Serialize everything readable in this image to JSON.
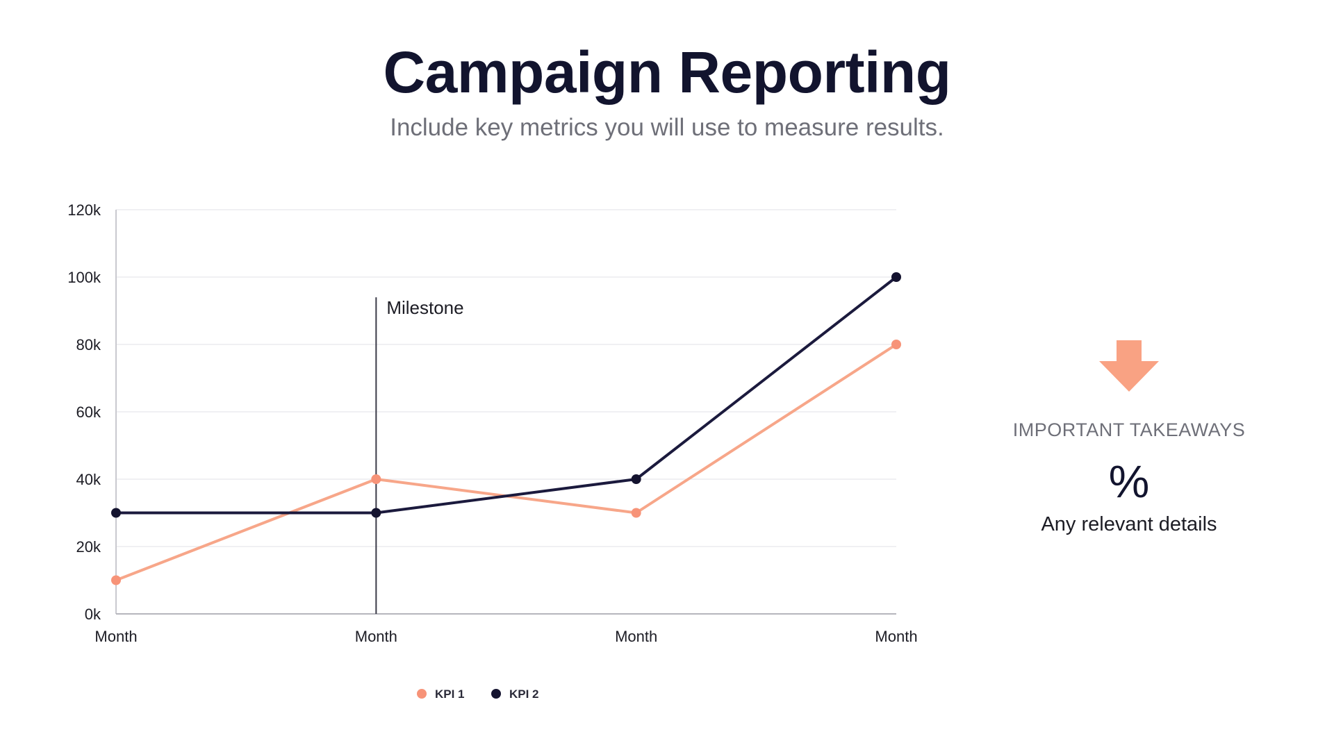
{
  "page": {
    "title": "Campaign Reporting",
    "subtitle": "Include key metrics you will use to measure results."
  },
  "takeaways": {
    "heading": "IMPORTANT TAKEAWAYS",
    "value": "%",
    "details": "Any relevant details",
    "arrow_icon": "arrow-down-icon",
    "arrow_color": "#f9a283"
  },
  "chart_data": {
    "type": "line",
    "categories": [
      "Month",
      "Month",
      "Month",
      "Month"
    ],
    "series": [
      {
        "name": "KPI 1",
        "values": [
          10000,
          40000,
          30000,
          80000
        ],
        "color": "#f7a689",
        "marker_color": "#f79378"
      },
      {
        "name": "KPI 2",
        "values": [
          30000,
          30000,
          40000,
          100000
        ],
        "color": "#1b1a3d",
        "marker_color": "#14132f"
      }
    ],
    "ylim": [
      0,
      120000
    ],
    "yticks": [
      0,
      20000,
      40000,
      60000,
      80000,
      100000,
      120000
    ],
    "ytick_labels": [
      "0k",
      "20k",
      "40k",
      "60k",
      "80k",
      "100k",
      "120k"
    ],
    "grid": true,
    "legend": "bottom-center",
    "annotations": [
      {
        "label": "Milestone",
        "category_index": 1,
        "y_top": 94000
      }
    ]
  }
}
